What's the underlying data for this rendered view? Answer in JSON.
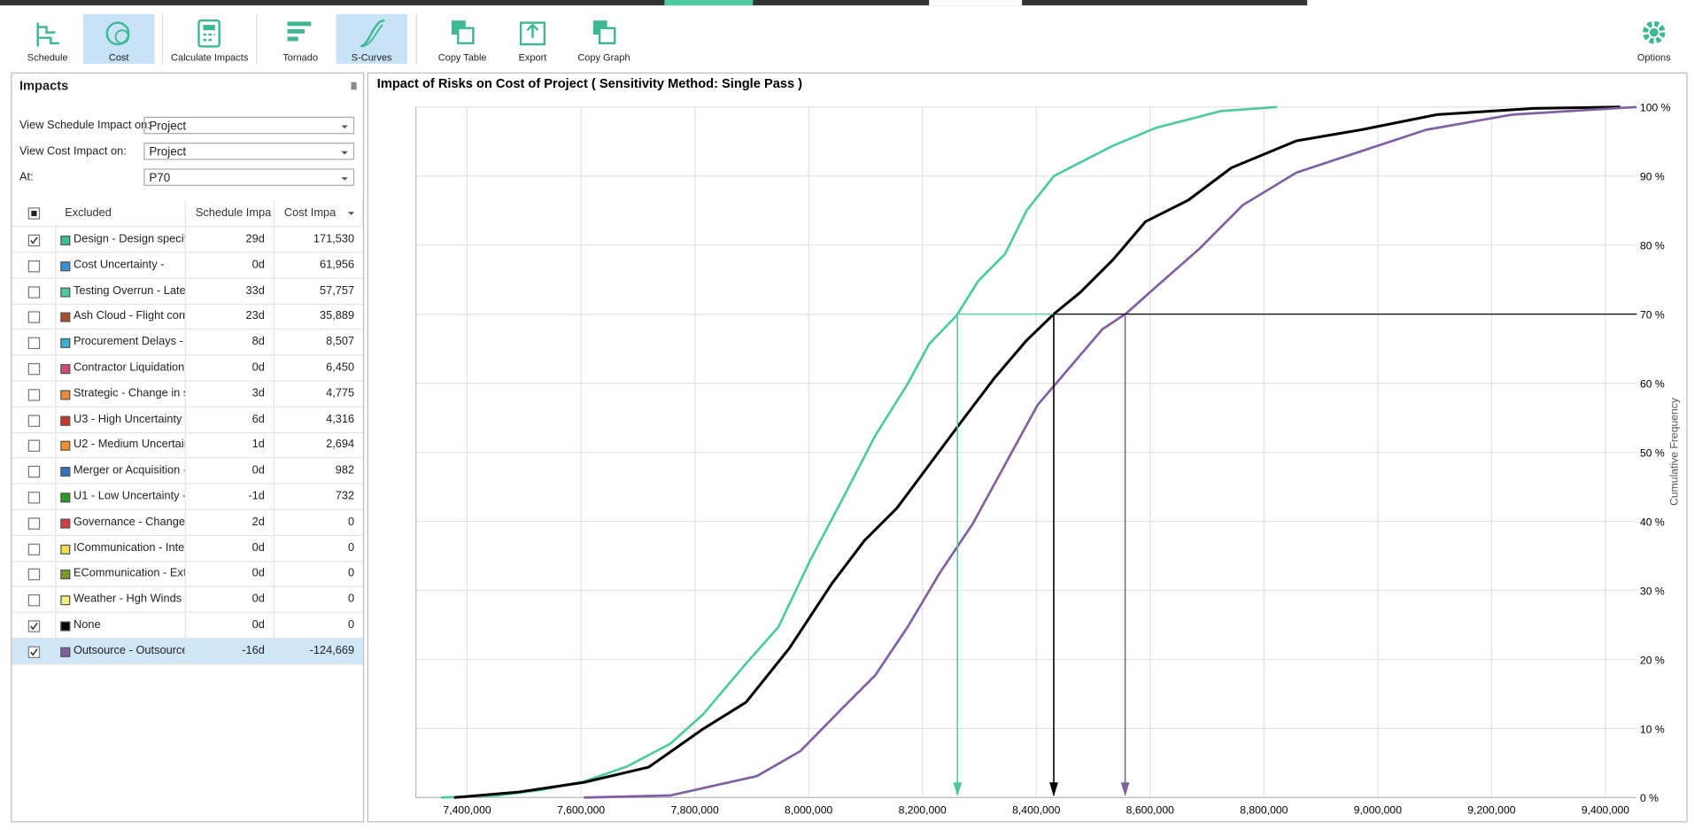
{
  "toolbar": {
    "buttons": [
      {
        "label": "Schedule",
        "active": false
      },
      {
        "label": "Cost",
        "active": true
      },
      {
        "label": "Calculate Impacts",
        "active": false
      },
      {
        "label": "Tornado",
        "active": false
      },
      {
        "label": "S-Curves",
        "active": true
      },
      {
        "label": "Copy Table",
        "active": false
      },
      {
        "label": "Export",
        "active": false
      },
      {
        "label": "Copy Graph",
        "active": false
      },
      {
        "label": "Options",
        "active": false
      }
    ]
  },
  "impacts": {
    "title": "Impacts",
    "filters": [
      {
        "label": "View Schedule Impact on:",
        "value": "Project"
      },
      {
        "label": "View Cost Impact on:",
        "value": "Project"
      },
      {
        "label": "At:",
        "value": "P70"
      }
    ],
    "table": {
      "columns": [
        "Excluded",
        "Schedule Impa",
        "Cost Impa"
      ],
      "rows": [
        {
          "excluded": true,
          "color": "#3dbf98",
          "name": "Design - Design specifi",
          "schedule": "29d",
          "cost": "171,530"
        },
        {
          "excluded": false,
          "color": "#3a8fd0",
          "name": "Cost Uncertainty -",
          "schedule": "0d",
          "cost": "61,956"
        },
        {
          "excluded": false,
          "color": "#4ec9a0",
          "name": "Testing Overrun - Late",
          "schedule": "33d",
          "cost": "57,757"
        },
        {
          "excluded": false,
          "color": "#a0522d",
          "name": "Ash Cloud - Flight corri",
          "schedule": "23d",
          "cost": "35,889"
        },
        {
          "excluded": false,
          "color": "#3fb0d0",
          "name": "Procurement Delays - F",
          "schedule": "8d",
          "cost": "8,507"
        },
        {
          "excluded": false,
          "color": "#d04a7a",
          "name": "Contractor Liquidation",
          "schedule": "0d",
          "cost": "6,450"
        },
        {
          "excluded": false,
          "color": "#f08a3a",
          "name": "Strategic - Change in st",
          "schedule": "3d",
          "cost": "4,775"
        },
        {
          "excluded": false,
          "color": "#c0392b",
          "name": "U3 - High Uncertainty -",
          "schedule": "6d",
          "cost": "4,316"
        },
        {
          "excluded": false,
          "color": "#f0902a",
          "name": "U2 - Medium Uncertair",
          "schedule": "1d",
          "cost": "2,694"
        },
        {
          "excluded": false,
          "color": "#3a70c0",
          "name": "Merger or Acquisition -",
          "schedule": "0d",
          "cost": "982"
        },
        {
          "excluded": false,
          "color": "#2a9a2a",
          "name": "U1 - Low Uncertainty -",
          "schedule": "-1d",
          "cost": "732"
        },
        {
          "excluded": false,
          "color": "#d04040",
          "name": "Governance - Changes",
          "schedule": "2d",
          "cost": "0"
        },
        {
          "excluded": false,
          "color": "#f0e040",
          "name": "ICommunication - Inter",
          "schedule": "0d",
          "cost": "0"
        },
        {
          "excluded": false,
          "color": "#7a9a2a",
          "name": "ECommunication - Exte",
          "schedule": "0d",
          "cost": "0"
        },
        {
          "excluded": false,
          "color": "#f0f080",
          "name": "Weather - Hgh Winds i",
          "schedule": "0d",
          "cost": "0"
        },
        {
          "excluded": true,
          "color": "#000000",
          "name": "None",
          "schedule": "0d",
          "cost": "0"
        },
        {
          "excluded": true,
          "color": "#8060a0",
          "name": "Outsource - Outsource",
          "schedule": "-16d",
          "cost": "-124,669",
          "selected": true
        }
      ]
    }
  },
  "chart_data": {
    "type": "line",
    "title": "Impact of Risks on Cost of Project ( Sensitivity Method: Single Pass )",
    "ylabel": "Cumulative Frequency",
    "xlim": [
      7310000,
      9455000
    ],
    "ylim": [
      0,
      100
    ],
    "grid": true,
    "xticks": [
      {
        "value": 7400000,
        "label": "7,400,000"
      },
      {
        "value": 7600000,
        "label": "7,600,000"
      },
      {
        "value": 7800000,
        "label": "7,800,000"
      },
      {
        "value": 8000000,
        "label": "8,000,000"
      },
      {
        "value": 8200000,
        "label": "8,200,000"
      },
      {
        "value": 8400000,
        "label": "8,400,000"
      },
      {
        "value": 8600000,
        "label": "8,600,000"
      },
      {
        "value": 8800000,
        "label": "8,800,000"
      },
      {
        "value": 9000000,
        "label": "9,000,000"
      },
      {
        "value": 9200000,
        "label": "9,200,000"
      },
      {
        "value": 9400000,
        "label": "9,400,000"
      }
    ],
    "yticks": [
      {
        "value": 0,
        "label": "0 %"
      },
      {
        "value": 10,
        "label": "10 %"
      },
      {
        "value": 20,
        "label": "20 %"
      },
      {
        "value": 30,
        "label": "30 %"
      },
      {
        "value": 40,
        "label": "40 %"
      },
      {
        "value": 50,
        "label": "50 %"
      },
      {
        "value": 60,
        "label": "60 %"
      },
      {
        "value": 70,
        "label": "70 %"
      },
      {
        "value": 80,
        "label": "80 %"
      },
      {
        "value": 90,
        "label": "90 %"
      },
      {
        "value": 100,
        "label": "100 %"
      }
    ],
    "series": [
      {
        "color": "#4ec9a0",
        "x": [
          7354000,
          7453000,
          7529000,
          7605000,
          7681000,
          7757000,
          7814000,
          7890000,
          7947000,
          8003000,
          8060000,
          8117000,
          8174000,
          8212000,
          8260000,
          8298000,
          8345000,
          8383000,
          8431000,
          8478000,
          8535000,
          8611000,
          8724000,
          8823000
        ],
        "values": [
          0,
          0.3,
          1.1,
          2.3,
          4.5,
          7.8,
          12,
          19.4,
          24.7,
          34.4,
          43.3,
          52.4,
          59.9,
          65.7,
          69.8,
          74.8,
          78.7,
          85,
          90,
          92,
          94.4,
          97,
          99.4,
          100
        ]
      },
      {
        "color": "#000000",
        "x": [
          7377000,
          7491000,
          7605000,
          7719000,
          7814000,
          7890000,
          7966000,
          8041000,
          8098000,
          8155000,
          8212000,
          8269000,
          8326000,
          8383000,
          8432000,
          8478000,
          8535000,
          8592000,
          8667000,
          8743000,
          8857000,
          8971000,
          9104000,
          9274000,
          9426000
        ],
        "values": [
          0,
          0.8,
          2.2,
          4.4,
          9.9,
          13.8,
          21.6,
          31,
          37.2,
          41.9,
          48.2,
          54.5,
          60.7,
          66.2,
          70.1,
          73.2,
          77.9,
          83.4,
          86.5,
          91.2,
          95.1,
          96.7,
          98.9,
          99.8,
          100
        ]
      },
      {
        "color": "#8060a0",
        "x": [
          7605000,
          7757000,
          7833000,
          7909000,
          7985000,
          8060000,
          8117000,
          8174000,
          8231000,
          8288000,
          8345000,
          8402000,
          8459000,
          8516000,
          8558000,
          8611000,
          8687000,
          8763000,
          8857000,
          8971000,
          9085000,
          9237000,
          9455000
        ],
        "values": [
          0,
          0.3,
          1.7,
          3.1,
          6.7,
          13,
          17.7,
          24.7,
          32.6,
          39.6,
          48.2,
          56.8,
          62.3,
          67.8,
          70.1,
          74,
          79.5,
          85.8,
          90.5,
          93.6,
          96.7,
          98.9,
          100
        ]
      }
    ]
  }
}
